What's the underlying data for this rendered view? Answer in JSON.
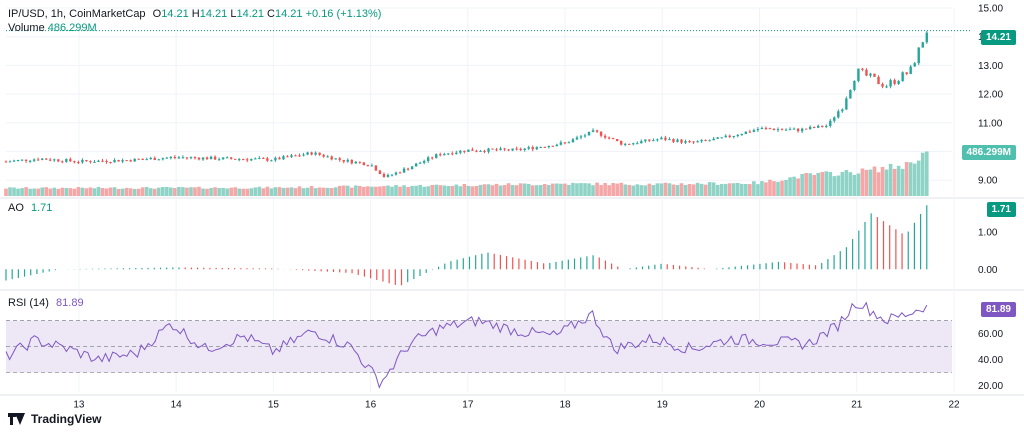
{
  "header": {
    "symbol": "IP/USD, 1h, CoinMarketCap",
    "open_label": "O",
    "open": "14.21",
    "high_label": "H",
    "high": "14.21",
    "low_label": "L",
    "low": "14.21",
    "close_label": "C",
    "close": "14.21",
    "change": "+0.16 (+1.13%)",
    "volume_label": "Volume",
    "volume": "486.299M"
  },
  "ao_legend": {
    "label": "AO",
    "value": "1.71"
  },
  "rsi_legend": {
    "label": "RSI (14)",
    "value": "81.89"
  },
  "price_tag": "14.21",
  "volume_tag": "486.299M",
  "ao_tag": "1.71",
  "rsi_tag": "81.89",
  "brand": "TradingView",
  "colors": {
    "up": "#26a69a",
    "down": "#ef5350",
    "up_volume": "#8fd3c7",
    "down_volume": "#f5a6a6",
    "rsi_line": "#7e57c2",
    "rsi_band": "#ede7f6",
    "rsi_tag": "#7e57c2",
    "price_tag": "#089981"
  },
  "chart_data": [
    {
      "type": "candlestick",
      "title": "IP/USD, 1h, CoinMarketCap",
      "x_ticks": [
        "13",
        "14",
        "15",
        "16",
        "17",
        "18",
        "19",
        "20",
        "21",
        "22"
      ],
      "y_ticks": [
        "9.00",
        "10.00",
        "11.00",
        "12.00",
        "13.00",
        "14.00",
        "15.00"
      ],
      "ylim": [
        8.45,
        15.0
      ],
      "last_price": 14.21,
      "close_path": [
        {
          "d": 12.25,
          "v": 9.65
        },
        {
          "d": 12.6,
          "v": 9.75
        },
        {
          "d": 13.0,
          "v": 9.65
        },
        {
          "d": 13.5,
          "v": 9.7
        },
        {
          "d": 14.0,
          "v": 9.8
        },
        {
          "d": 14.5,
          "v": 9.75
        },
        {
          "d": 15.0,
          "v": 9.72
        },
        {
          "d": 15.4,
          "v": 9.95
        },
        {
          "d": 15.7,
          "v": 9.7
        },
        {
          "d": 16.0,
          "v": 9.55
        },
        {
          "d": 16.15,
          "v": 9.1
        },
        {
          "d": 16.4,
          "v": 9.45
        },
        {
          "d": 16.7,
          "v": 9.9
        },
        {
          "d": 17.0,
          "v": 10.05
        },
        {
          "d": 17.5,
          "v": 10.05
        },
        {
          "d": 18.0,
          "v": 10.3
        },
        {
          "d": 18.3,
          "v": 10.7
        },
        {
          "d": 18.6,
          "v": 10.25
        },
        {
          "d": 19.0,
          "v": 10.45
        },
        {
          "d": 19.3,
          "v": 10.3
        },
        {
          "d": 19.6,
          "v": 10.45
        },
        {
          "d": 20.0,
          "v": 10.8
        },
        {
          "d": 20.4,
          "v": 10.75
        },
        {
          "d": 20.7,
          "v": 10.9
        },
        {
          "d": 20.85,
          "v": 11.6
        },
        {
          "d": 21.0,
          "v": 12.8
        },
        {
          "d": 21.3,
          "v": 12.3
        },
        {
          "d": 21.55,
          "v": 12.8
        },
        {
          "d": 21.72,
          "v": 14.21
        }
      ],
      "volume_path": [
        {
          "d": 12.25,
          "v": 0.18
        },
        {
          "d": 15.0,
          "v": 0.19
        },
        {
          "d": 16.0,
          "v": 0.22
        },
        {
          "d": 17.0,
          "v": 0.25
        },
        {
          "d": 18.0,
          "v": 0.28
        },
        {
          "d": 19.0,
          "v": 0.27
        },
        {
          "d": 20.0,
          "v": 0.3
        },
        {
          "d": 20.5,
          "v": 0.48
        },
        {
          "d": 21.0,
          "v": 0.55
        },
        {
          "d": 21.5,
          "v": 0.7
        },
        {
          "d": 21.72,
          "v": 1.0
        }
      ]
    },
    {
      "type": "bar",
      "title": "AO",
      "y_ticks": [
        "0.00",
        "1.00"
      ],
      "ylim": [
        -0.5,
        1.85
      ],
      "last_value": 1.71,
      "path": [
        {
          "d": 12.25,
          "v": -0.3
        },
        {
          "d": 12.8,
          "v": 0.0
        },
        {
          "d": 14.0,
          "v": 0.05
        },
        {
          "d": 15.0,
          "v": 0.02
        },
        {
          "d": 15.8,
          "v": -0.1
        },
        {
          "d": 16.3,
          "v": -0.45
        },
        {
          "d": 16.8,
          "v": 0.2
        },
        {
          "d": 17.2,
          "v": 0.45
        },
        {
          "d": 17.8,
          "v": 0.15
        },
        {
          "d": 18.3,
          "v": 0.38
        },
        {
          "d": 18.6,
          "v": 0.0
        },
        {
          "d": 19.0,
          "v": 0.15
        },
        {
          "d": 19.5,
          "v": 0.0
        },
        {
          "d": 20.2,
          "v": 0.2
        },
        {
          "d": 20.6,
          "v": 0.1
        },
        {
          "d": 20.9,
          "v": 0.6
        },
        {
          "d": 21.15,
          "v": 1.5
        },
        {
          "d": 21.5,
          "v": 0.9
        },
        {
          "d": 21.72,
          "v": 1.71
        }
      ]
    },
    {
      "type": "line",
      "title": "RSI (14)",
      "y_ticks": [
        "20.00",
        "40.00",
        "60.00"
      ],
      "ylim": [
        15,
        92
      ],
      "band": [
        30,
        70
      ],
      "midline": 50,
      "last_value": 81.89,
      "path": [
        {
          "d": 12.25,
          "v": 42
        },
        {
          "d": 12.55,
          "v": 55
        },
        {
          "d": 12.9,
          "v": 48
        },
        {
          "d": 13.2,
          "v": 40
        },
        {
          "d": 13.6,
          "v": 45
        },
        {
          "d": 13.95,
          "v": 68
        },
        {
          "d": 14.3,
          "v": 48
        },
        {
          "d": 14.7,
          "v": 58
        },
        {
          "d": 15.0,
          "v": 46
        },
        {
          "d": 15.4,
          "v": 62
        },
        {
          "d": 15.8,
          "v": 50
        },
        {
          "d": 16.1,
          "v": 22
        },
        {
          "d": 16.4,
          "v": 52
        },
        {
          "d": 16.7,
          "v": 64
        },
        {
          "d": 17.1,
          "v": 70
        },
        {
          "d": 17.5,
          "v": 62
        },
        {
          "d": 17.9,
          "v": 58
        },
        {
          "d": 18.28,
          "v": 75
        },
        {
          "d": 18.5,
          "v": 48
        },
        {
          "d": 18.9,
          "v": 56
        },
        {
          "d": 19.3,
          "v": 48
        },
        {
          "d": 19.7,
          "v": 56
        },
        {
          "d": 20.1,
          "v": 54
        },
        {
          "d": 20.5,
          "v": 52
        },
        {
          "d": 20.8,
          "v": 66
        },
        {
          "d": 21.0,
          "v": 85
        },
        {
          "d": 21.3,
          "v": 70
        },
        {
          "d": 21.55,
          "v": 76
        },
        {
          "d": 21.72,
          "v": 81.89
        }
      ]
    }
  ]
}
